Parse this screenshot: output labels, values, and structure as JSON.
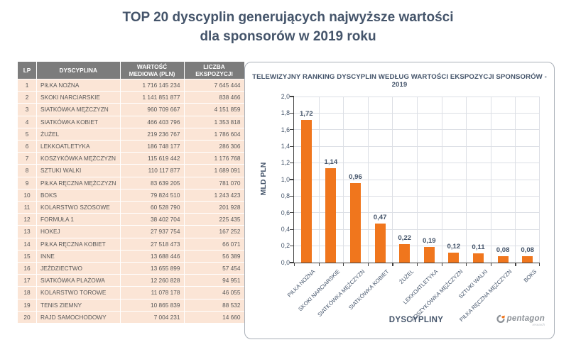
{
  "page": {
    "title_line1": "TOP 20 dyscyplin generujących najwyższe wartości",
    "title_line2": "dla sponsorów w 2019 roku"
  },
  "table": {
    "headers": [
      "LP",
      "DYSCYPLINA",
      "WARTOŚĆ MEDIOWA (PLN)",
      "LICZBA EKSPOZYCJI"
    ],
    "rows": [
      [
        "1",
        "PIŁKA NOŻNA",
        "1 716 145 234",
        "7 645 444"
      ],
      [
        "2",
        "SKOKI NARCIARSKIE",
        "1 141 851 877",
        "838 466"
      ],
      [
        "3",
        "SIATKÓWKA MĘŻCZYZN",
        "960 709 667",
        "4 151 859"
      ],
      [
        "4",
        "SIATKÓWKA KOBIET",
        "466 403 796",
        "1 353 818"
      ],
      [
        "5",
        "ŻUŻEL",
        "219 236 767",
        "1 786 604"
      ],
      [
        "6",
        "LEKKOATLETYKA",
        "186 748 177",
        "286 306"
      ],
      [
        "7",
        "KOSZYKÓWKA MĘŻCZYZN",
        "115 619 442",
        "1 176 768"
      ],
      [
        "8",
        "SZTUKI WALKI",
        "110 117 877",
        "1 689 091"
      ],
      [
        "9",
        "PIŁKA RĘCZNA MĘŻCZYZN",
        "83 639 205",
        "781 070"
      ],
      [
        "10",
        "BOKS",
        "79 824 510",
        "1 243 423"
      ],
      [
        "11",
        "KOLARSTWO SZOSOWE",
        "60 528 790",
        "201 928"
      ],
      [
        "12",
        "FORMUŁA 1",
        "38 402 704",
        "225 435"
      ],
      [
        "13",
        "HOKEJ",
        "27 937 754",
        "167 252"
      ],
      [
        "14",
        "PIŁKA RĘCZNA KOBIET",
        "27 518 473",
        "66 071"
      ],
      [
        "15",
        "INNE",
        "13 688 446",
        "56 389"
      ],
      [
        "16",
        "JEŹDZIECTWO",
        "13 655 899",
        "57 454"
      ],
      [
        "17",
        "SIATKÓWKA PLAŻOWA",
        "12 260 828",
        "94 951"
      ],
      [
        "18",
        "KOLARSTWO TOROWE",
        "11 078 178",
        "46 055"
      ],
      [
        "19",
        "TENIS ZIEMNY",
        "10 865 839",
        "88 532"
      ],
      [
        "20",
        "RAJD SAMOCHODOWY",
        "7 004 231",
        "14 660"
      ]
    ]
  },
  "chart_data": {
    "type": "bar",
    "title": "TELEWIZYJNY RANKING DYSCYPLIN WEDŁUG WARTOŚCI EKSPOZYCJI SPONSORÓW - 2019",
    "xlabel": "DYSCYPLINY",
    "ylabel": "MLD PLN",
    "categories": [
      "PIŁKA NOŻNA",
      "SKOKI NARCIARSKIE",
      "SIATKÓWKA MĘŻCZYZN",
      "SIATKÓWKA KOBIET",
      "ŻUŻEL",
      "LEKKOATLETYKA",
      "KOSZYKÓWKA MĘŻCZYZN",
      "SZTUKI WALKI",
      "PIŁKA RĘCZNA MĘŻCZYZN",
      "BOKS"
    ],
    "values": [
      1.72,
      1.14,
      0.96,
      0.47,
      0.22,
      0.19,
      0.12,
      0.11,
      0.08,
      0.08
    ],
    "value_labels": [
      "1,72",
      "1,14",
      "0,96",
      "0,47",
      "0,22",
      "0,19",
      "0,12",
      "0,11",
      "0,08",
      "0,08"
    ],
    "ylim": [
      0,
      2.0
    ],
    "y_ticks": [
      "0,0",
      "0,2",
      "0,4",
      "0,6",
      "0,8",
      "1,0",
      "1,2",
      "1,4",
      "1,6",
      "1,8",
      "2,0"
    ],
    "grid": true,
    "legend": false,
    "bar_color": "#F0761D"
  },
  "branding": {
    "logo_text": "pentagon",
    "logo_subtext": "research"
  },
  "colors": {
    "accent_orange": "#F0761D",
    "title_navy": "#44546A",
    "table_header_gray": "#7C7C7C",
    "table_row_peach": "#FBE5D6"
  }
}
